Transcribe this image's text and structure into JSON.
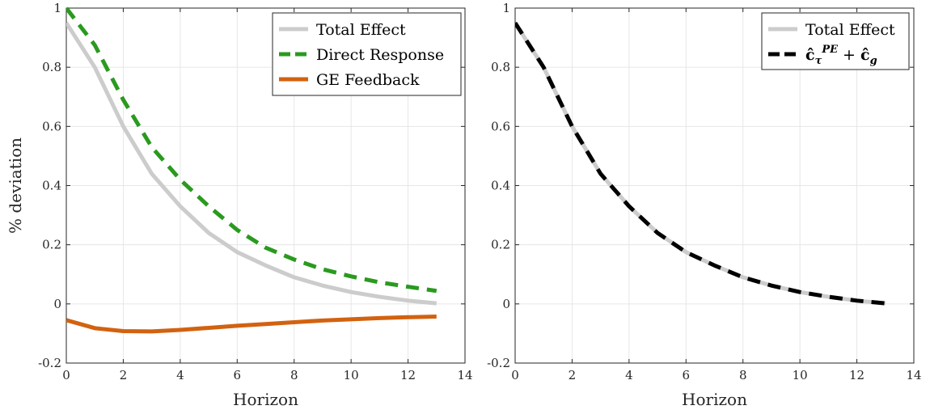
{
  "chart_data": [
    {
      "type": "line",
      "title": "",
      "xlabel": "Horizon",
      "ylabel": "% deviation",
      "xlim": [
        0,
        14
      ],
      "ylim": [
        -0.2,
        1
      ],
      "xticks": [
        0,
        2,
        4,
        6,
        8,
        10,
        12,
        14
      ],
      "yticks": [
        -0.2,
        0,
        0.2,
        0.4,
        0.6,
        0.8,
        1
      ],
      "xtick_labels": [
        "0",
        "2",
        "4",
        "6",
        "8",
        "10",
        "12",
        "14"
      ],
      "ytick_labels": [
        "-0.2",
        "0",
        "0.2",
        "0.4",
        "0.6",
        "0.8",
        "1"
      ],
      "grid": true,
      "legend_position": "top-right",
      "x": [
        0,
        1,
        2,
        3,
        4,
        5,
        6,
        7,
        8,
        9,
        10,
        11,
        12,
        13
      ],
      "series": [
        {
          "name": "Total Effect",
          "color": "#cccccc",
          "style": "solid",
          "values": [
            0.95,
            0.8,
            0.6,
            0.44,
            0.33,
            0.24,
            0.175,
            0.13,
            0.09,
            0.062,
            0.04,
            0.024,
            0.011,
            0.002
          ]
        },
        {
          "name": "Direct Response",
          "color": "#2a9a1f",
          "style": "dashed",
          "values": [
            1.0,
            0.875,
            0.69,
            0.53,
            0.42,
            0.33,
            0.25,
            0.19,
            0.15,
            0.117,
            0.093,
            0.073,
            0.058,
            0.044
          ]
        },
        {
          "name": "GE Feedback",
          "color": "#d26210",
          "style": "solid",
          "values": [
            -0.055,
            -0.082,
            -0.092,
            -0.093,
            -0.088,
            -0.081,
            -0.074,
            -0.068,
            -0.062,
            -0.056,
            -0.052,
            -0.048,
            -0.045,
            -0.043
          ]
        }
      ]
    },
    {
      "type": "line",
      "title": "",
      "xlabel": "Horizon",
      "ylabel": "",
      "xlim": [
        0,
        14
      ],
      "ylim": [
        -0.2,
        1
      ],
      "xticks": [
        0,
        2,
        4,
        6,
        8,
        10,
        12,
        14
      ],
      "yticks": [
        -0.2,
        0,
        0.2,
        0.4,
        0.6,
        0.8,
        1
      ],
      "xtick_labels": [
        "0",
        "2",
        "4",
        "6",
        "8",
        "10",
        "12",
        "14"
      ],
      "ytick_labels": [
        "-0.2",
        "0",
        "0.2",
        "0.4",
        "0.6",
        "0.8",
        "1"
      ],
      "grid": true,
      "legend_position": "top-right",
      "x": [
        0,
        1,
        2,
        3,
        4,
        5,
        6,
        7,
        8,
        9,
        10,
        11,
        12,
        13
      ],
      "series": [
        {
          "name": "Total Effect",
          "color": "#cccccc",
          "style": "solid",
          "values": [
            0.95,
            0.8,
            0.6,
            0.44,
            0.33,
            0.24,
            0.175,
            0.13,
            0.09,
            0.062,
            0.04,
            0.024,
            0.011,
            0.002
          ]
        },
        {
          "name": "ĉτPE + ĉg",
          "color": "#000000",
          "style": "dashed",
          "values": [
            0.95,
            0.8,
            0.6,
            0.44,
            0.33,
            0.24,
            0.175,
            0.13,
            0.09,
            0.062,
            0.04,
            0.024,
            0.011,
            0.002
          ]
        }
      ]
    }
  ]
}
